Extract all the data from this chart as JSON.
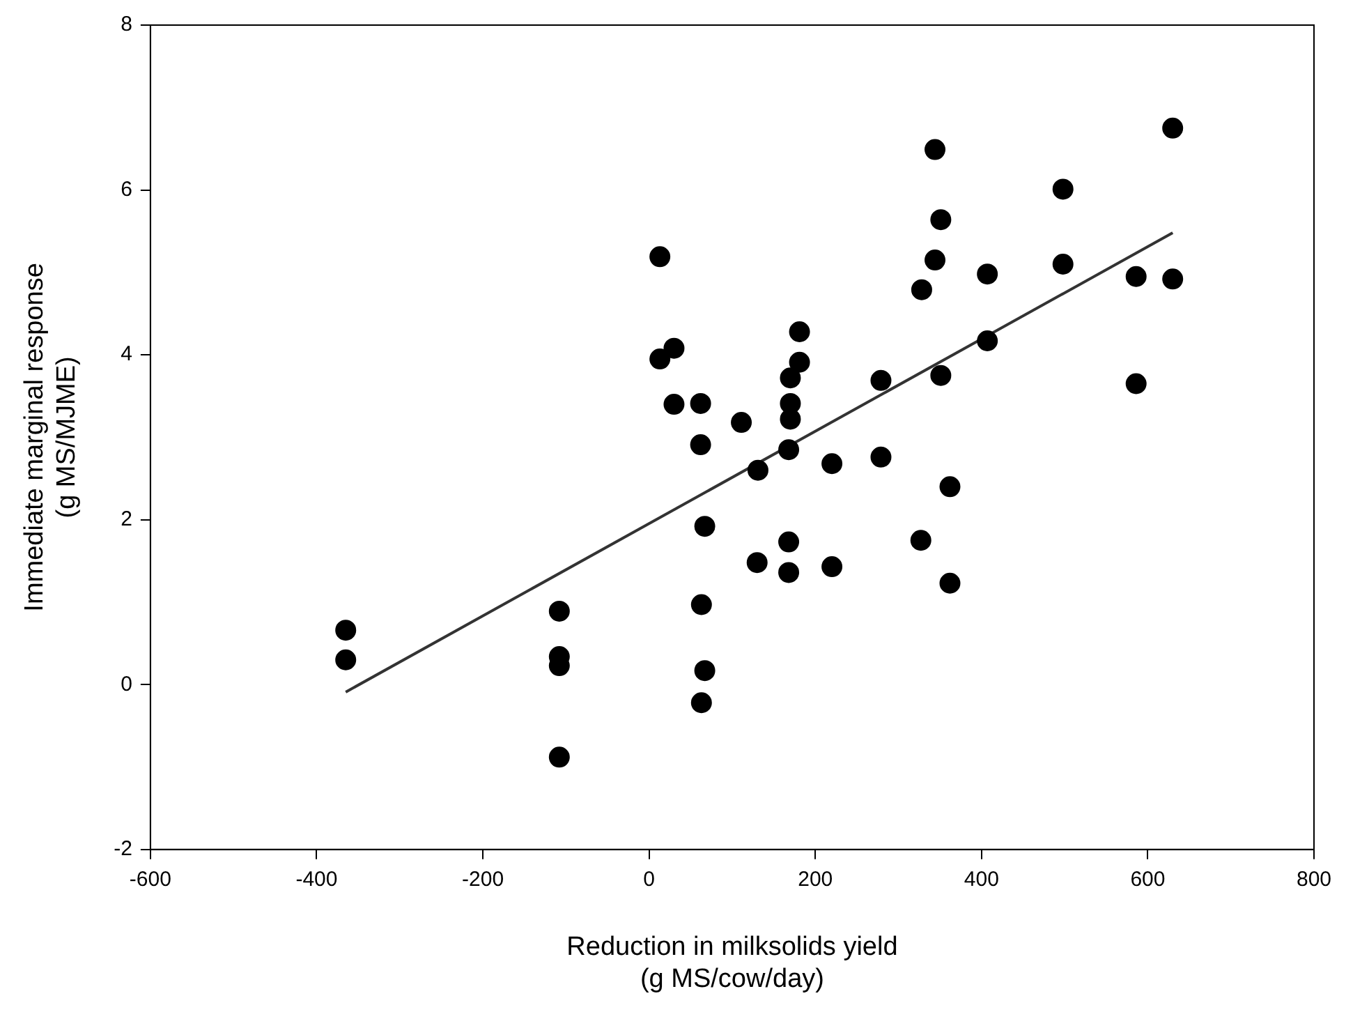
{
  "chart_data": {
    "type": "scatter",
    "xlabel": "Reduction in milksolids yield\n(g MS/cow/day)",
    "ylabel": "Immediate marginal response\n(g MS/MJME)",
    "xlim": [
      -600,
      800
    ],
    "xticks": [
      -600,
      -400,
      -200,
      0,
      200,
      400,
      600,
      800
    ],
    "ylim": [
      -2,
      8
    ],
    "yticks": [
      -2,
      0,
      2,
      4,
      6,
      8
    ],
    "grid": false,
    "legend": false,
    "marker": "circle",
    "series": [
      {
        "color": "#000000",
        "x": [
          -365,
          -365,
          -108,
          -108,
          -108,
          -108,
          13,
          30,
          13,
          30,
          62,
          111,
          62,
          131,
          67,
          130,
          63,
          67,
          63,
          181,
          181,
          170,
          170,
          170,
          168,
          220,
          168,
          168,
          220,
          279,
          279,
          344,
          351,
          344,
          328,
          407,
          351,
          407,
          362,
          327,
          362,
          498,
          498,
          586,
          630,
          586,
          630
        ],
        "values": [
          0.66,
          0.3,
          0.89,
          0.34,
          0.23,
          -0.88,
          5.19,
          4.08,
          3.95,
          3.4,
          3.41,
          3.18,
          2.91,
          2.6,
          1.92,
          1.48,
          0.97,
          0.17,
          -0.22,
          4.28,
          3.91,
          3.72,
          3.41,
          3.22,
          2.85,
          2.68,
          1.73,
          1.36,
          1.43,
          3.69,
          2.76,
          6.49,
          5.64,
          5.15,
          4.79,
          4.98,
          3.75,
          4.17,
          2.4,
          1.75,
          1.23,
          6.01,
          5.1,
          4.95,
          4.92,
          3.65,
          6.75
        ]
      },
      {
        "type": "line",
        "color": "#333333",
        "marker": "none",
        "x": [
          -365,
          630
        ],
        "values": [
          -0.09,
          5.48
        ]
      }
    ]
  }
}
